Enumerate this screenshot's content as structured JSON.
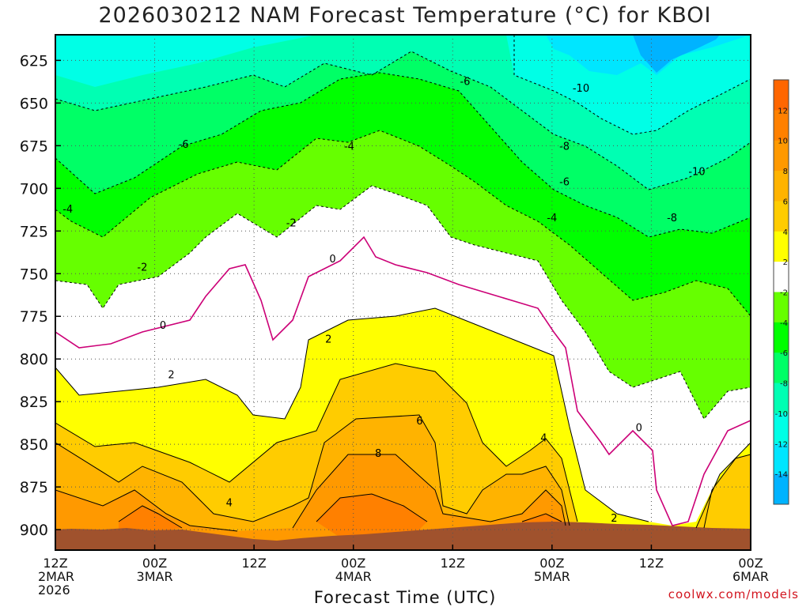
{
  "chart_data": {
    "type": "contour",
    "title": "2026030212 NAM Forecast Temperature (°C) for KBOI",
    "xlabel": "Forecast Time (UTC)",
    "ylabel": "",
    "credit": "coolwx.com/models",
    "x_ticks": [
      {
        "hours": 0,
        "lines": [
          "12Z",
          "2MAR",
          "2026"
        ]
      },
      {
        "hours": 12,
        "lines": [
          "00Z",
          "3MAR"
        ]
      },
      {
        "hours": 24,
        "lines": [
          "12Z"
        ]
      },
      {
        "hours": 36,
        "lines": [
          "00Z",
          "4MAR"
        ]
      },
      {
        "hours": 48,
        "lines": [
          "12Z"
        ]
      },
      {
        "hours": 60,
        "lines": [
          "00Z",
          "5MAR"
        ]
      },
      {
        "hours": 72,
        "lines": [
          "12Z"
        ]
      },
      {
        "hours": 84,
        "lines": [
          "00Z",
          "6MAR"
        ]
      }
    ],
    "x_range_hours": [
      0,
      84
    ],
    "y_ticks": [
      625,
      650,
      675,
      700,
      725,
      750,
      775,
      800,
      825,
      850,
      875,
      900
    ],
    "y_range_hpa": [
      912,
      610
    ],
    "grid": true,
    "colorbar": {
      "placement": "right",
      "labels": [
        "12",
        "10",
        "8",
        "6",
        "4",
        "2",
        "-2",
        "-4",
        "-6",
        "-8",
        "-10",
        "-12",
        "-14"
      ],
      "bands": [
        {
          "range": "12..14",
          "color": "#ff6600"
        },
        {
          "range": "10..12",
          "color": "#ff8000"
        },
        {
          "range": "8..10",
          "color": "#ff9900"
        },
        {
          "range": "6..8",
          "color": "#ffb300"
        },
        {
          "range": "4..6",
          "color": "#ffcc00"
        },
        {
          "range": "2..4",
          "color": "#ffff00"
        },
        {
          "range": "-2..2",
          "color": "#ffffff"
        },
        {
          "range": "-4..-2",
          "color": "#66ff00"
        },
        {
          "range": "-6..-4",
          "color": "#00ff00"
        },
        {
          "range": "-8..-6",
          "color": "#00ff66"
        },
        {
          "range": "-10..-8",
          "color": "#00ffb3"
        },
        {
          "range": "-12..-10",
          "color": "#00ffe6"
        },
        {
          "range": "-14..-12",
          "color": "#00e6ff"
        },
        {
          "range": "-16..-14",
          "color": "#00b3ff"
        }
      ]
    },
    "terrain_color": "#a0522d",
    "freezing_line_color": "#cc0077",
    "contour_labels": [
      {
        "text": "-6",
        "h": 49.5,
        "p": 637
      },
      {
        "text": "-10",
        "h": 63.5,
        "p": 641
      },
      {
        "text": "-6",
        "h": 15.5,
        "p": 674
      },
      {
        "text": "-4",
        "h": 35.5,
        "p": 675
      },
      {
        "text": "-8",
        "h": 61.5,
        "p": 675
      },
      {
        "text": "-6",
        "h": 61.5,
        "p": 696
      },
      {
        "text": "-10",
        "h": 77.5,
        "p": 690
      },
      {
        "text": "-4",
        "h": 1.5,
        "p": 712
      },
      {
        "text": "-4",
        "h": 60.0,
        "p": 717
      },
      {
        "text": "-8",
        "h": 74.5,
        "p": 717
      },
      {
        "text": "-2",
        "h": 28.5,
        "p": 720
      },
      {
        "text": "-2",
        "h": 10.5,
        "p": 746
      },
      {
        "text": "0",
        "h": 33.5,
        "p": 741
      },
      {
        "text": "0",
        "h": 13.0,
        "p": 780
      },
      {
        "text": "2",
        "h": 33.0,
        "p": 788
      },
      {
        "text": "0",
        "h": 70.5,
        "p": 840
      },
      {
        "text": "2",
        "h": 14.0,
        "p": 809
      },
      {
        "text": "6",
        "h": 44.0,
        "p": 836
      },
      {
        "text": "4",
        "h": 59.0,
        "p": 846
      },
      {
        "text": "8",
        "h": 39.0,
        "p": 855
      },
      {
        "text": "4",
        "h": 21.0,
        "p": 884
      },
      {
        "text": "2",
        "h": 67.5,
        "p": 893
      }
    ]
  }
}
